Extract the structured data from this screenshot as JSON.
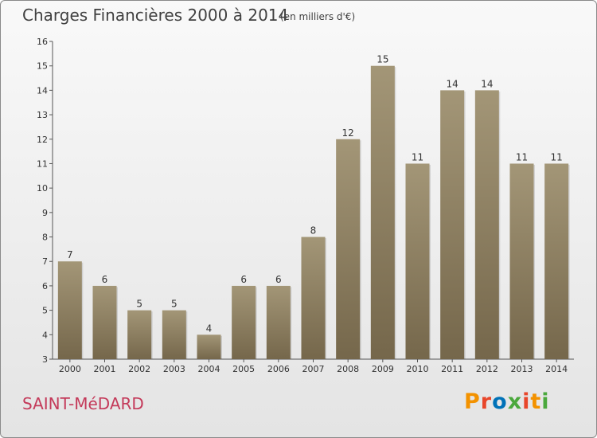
{
  "page": {
    "title": "Charges Financières 2000 à 2014",
    "subtitle": "(en milliers d'€)",
    "commune": "SAINT-MéDARD",
    "logo": "Proxiti"
  },
  "colors": {
    "bar_top": "#a39677",
    "bar_bottom": "#75674b",
    "commune": "#c43a5a",
    "logo": [
      "#f39200",
      "#e8462a",
      "#0072b8",
      "#4aa83c",
      "#e8462a",
      "#f39200",
      "#4aa83c"
    ]
  },
  "chart_data": {
    "type": "bar",
    "title": "Charges Financières 2000 à 2014",
    "subtitle": "(en milliers d'€)",
    "categories": [
      "2000",
      "2001",
      "2002",
      "2003",
      "2004",
      "2005",
      "2006",
      "2007",
      "2008",
      "2009",
      "2010",
      "2011",
      "2012",
      "2013",
      "2014"
    ],
    "values": [
      7,
      6,
      5,
      5,
      4,
      6,
      6,
      8,
      12,
      15,
      11,
      14,
      14,
      11,
      11
    ],
    "data_labels": [
      "7",
      "6",
      "5",
      "5",
      "4",
      "6",
      "6",
      "8",
      "12",
      "15",
      "11",
      "14",
      "14",
      "11",
      "11"
    ],
    "y_ticks": [
      "3",
      "4",
      "5",
      "6",
      "7",
      "8",
      "9",
      "10",
      "11",
      "12",
      "13",
      "14",
      "15",
      "16"
    ],
    "ylim": [
      3,
      16
    ],
    "grid": false
  }
}
